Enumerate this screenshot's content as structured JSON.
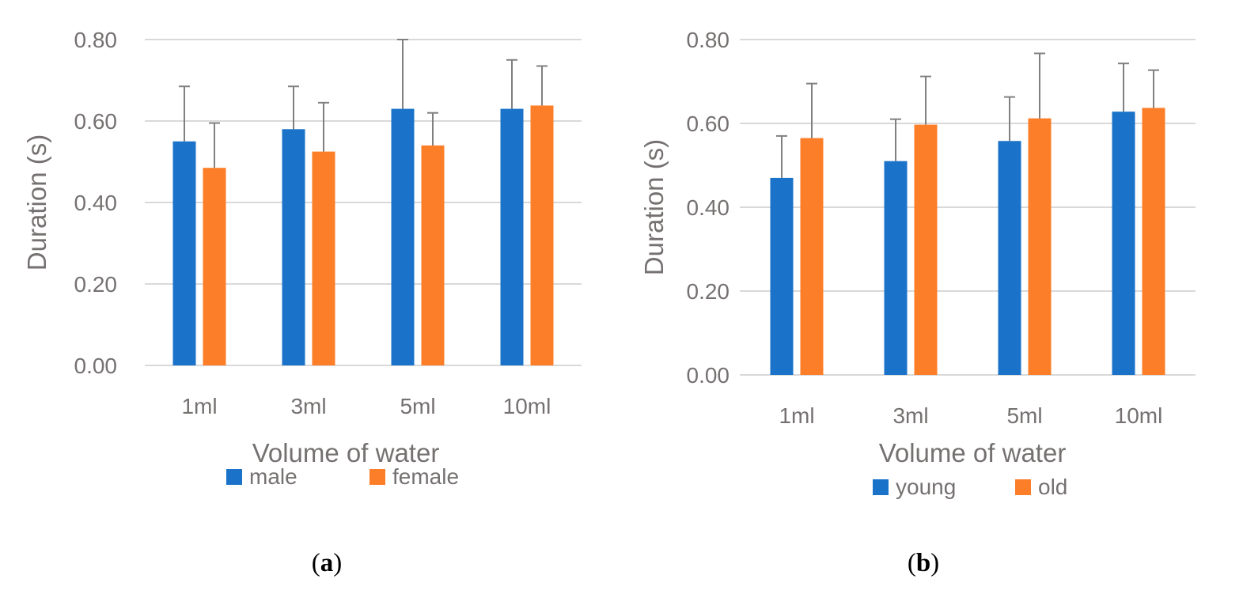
{
  "chart_data": [
    {
      "type": "bar",
      "panel": "a",
      "categories": [
        "1ml",
        "3ml",
        "5ml",
        "10ml"
      ],
      "series": [
        {
          "name": "male",
          "color": "#1a73c9",
          "values": [
            0.55,
            0.58,
            0.63,
            0.63
          ],
          "error": [
            0.135,
            0.105,
            0.17,
            0.12
          ]
        },
        {
          "name": "female",
          "color": "#fd7e28",
          "values": [
            0.485,
            0.525,
            0.54,
            0.638
          ],
          "error": [
            0.11,
            0.12,
            0.08,
            0.097
          ]
        }
      ],
      "title": "",
      "xlabel": "Volume of water",
      "ylabel": "Duration (s)",
      "ylim": [
        0,
        0.8
      ],
      "yticks": [
        "0.00",
        "0.20",
        "0.40",
        "0.60",
        "0.80"
      ],
      "grid": true,
      "legend": "bottom"
    },
    {
      "type": "bar",
      "panel": "b",
      "categories": [
        "1ml",
        "3ml",
        "5ml",
        "10ml"
      ],
      "series": [
        {
          "name": "young",
          "color": "#1a73c9",
          "values": [
            0.47,
            0.51,
            0.558,
            0.628
          ],
          "error": [
            0.1,
            0.1,
            0.105,
            0.115
          ]
        },
        {
          "name": "old",
          "color": "#fd7e28",
          "values": [
            0.565,
            0.597,
            0.612,
            0.637
          ],
          "error": [
            0.13,
            0.115,
            0.155,
            0.09
          ]
        }
      ],
      "title": "",
      "xlabel": "Volume of water",
      "ylabel": "Duration (s)",
      "ylim": [
        0,
        0.8
      ],
      "yticks": [
        "0.00",
        "0.20",
        "0.40",
        "0.60",
        "0.80"
      ],
      "grid": true,
      "legend": "bottom"
    }
  ],
  "panel_labels": {
    "a": {
      "open": "(",
      "letter": "a",
      "close": ")"
    },
    "b": {
      "open": "(",
      "letter": "b",
      "close": ")"
    }
  }
}
